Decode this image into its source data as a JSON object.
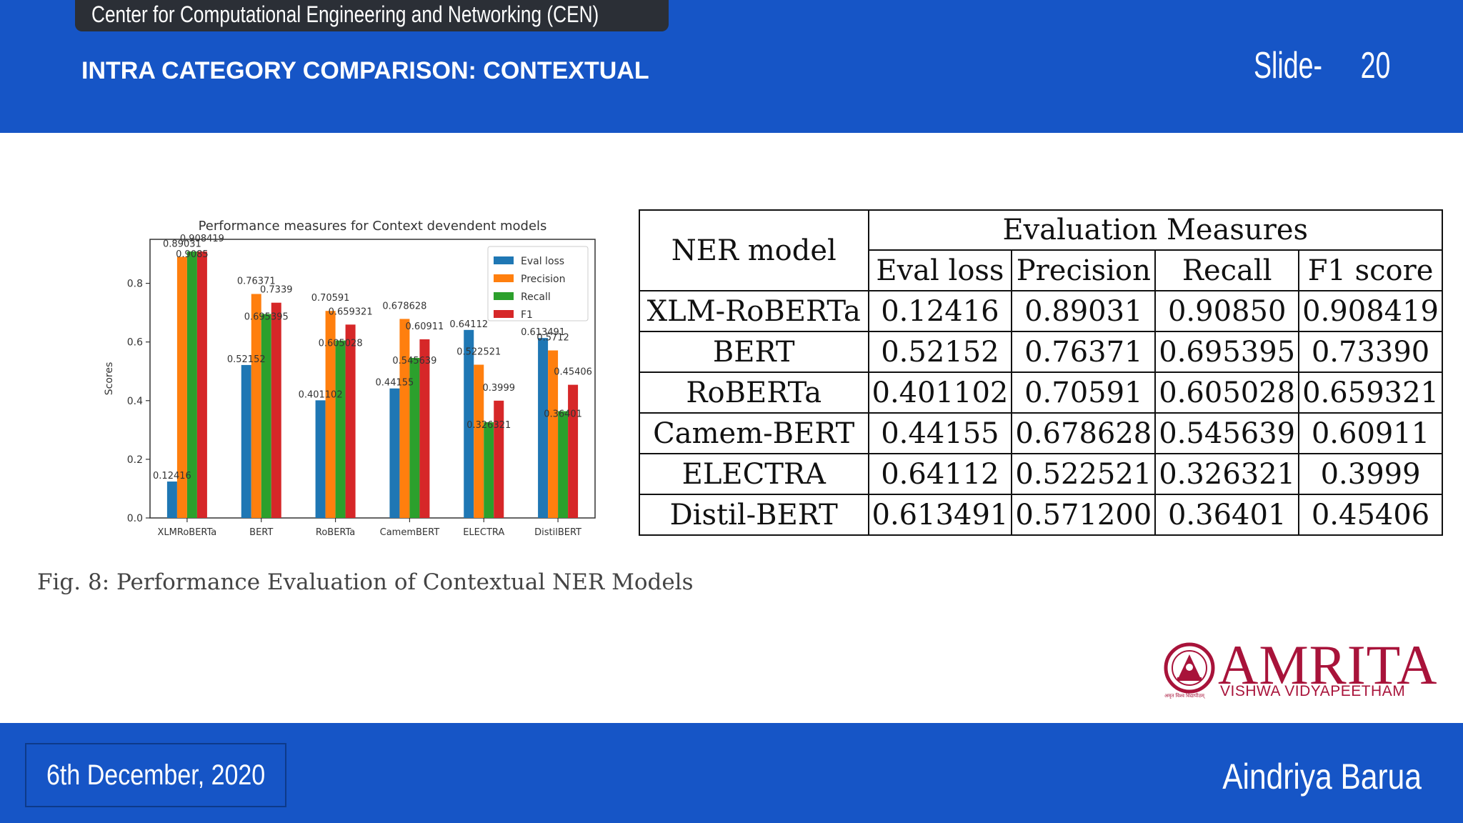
{
  "header": {
    "center_name": "Center for Computational Engineering and Networking (CEN)",
    "slide_title": "INTRA CATEGORY COMPARISON: CONTEXTUAL",
    "slide_label": "Slide-",
    "slide_number": "20"
  },
  "footer": {
    "date": "6th December, 2020",
    "author": "Aindriya Barua"
  },
  "figure": {
    "caption": "Fig. 8: Performance Evaluation of Contextual NER Models"
  },
  "chart_data": {
    "type": "bar",
    "title": "Performance measures for Context devendent models",
    "xlabel": "",
    "ylabel": "Scores",
    "ylim": [
      0,
      0.95
    ],
    "yticks": [
      "0.0",
      "0.2",
      "0.4",
      "0.6",
      "0.8"
    ],
    "categories": [
      "XLMRoBERTa",
      "BERT",
      "RoBERTa",
      "CamemBERT",
      "ELECTRA",
      "DistilBERT"
    ],
    "legend_position": "top-right",
    "grid": false,
    "series": [
      {
        "name": "Eval loss",
        "color": "#1f77b4",
        "values": [
          0.12416,
          0.52152,
          0.401102,
          0.44155,
          0.64112,
          0.613491
        ],
        "labels": [
          "0.12416",
          "0.52152",
          "0.401102",
          "0.44155",
          "0.64112",
          "0.613491"
        ]
      },
      {
        "name": "Precision",
        "color": "#ff7f0e",
        "values": [
          0.89031,
          0.76371,
          0.70591,
          0.678628,
          0.522521,
          0.5712
        ],
        "labels": [
          "0.89031",
          "0.76371",
          "0.70591",
          "0.678628",
          "0.522521",
          "0.5712"
        ]
      },
      {
        "name": "Recall",
        "color": "#2ca02c",
        "values": [
          0.9085,
          0.695395,
          0.605028,
          0.545639,
          0.326321,
          0.36401
        ],
        "labels": [
          "0.9085",
          "0.695395",
          "0.605028",
          "0.545639",
          "0.326321",
          "0.36401"
        ]
      },
      {
        "name": "F1",
        "color": "#d62728",
        "values": [
          0.908419,
          0.7339,
          0.659321,
          0.60911,
          0.3999,
          0.45406
        ],
        "labels": [
          "0.908419",
          "0.7339",
          "0.659321",
          "0.60911",
          "0.3999",
          "0.45406"
        ]
      }
    ]
  },
  "table": {
    "corner_header": "NER model",
    "group_header": "Evaluation Measures",
    "columns": [
      "Eval loss",
      "Precision",
      "Recall",
      "F1 score"
    ],
    "rows": [
      {
        "model": "XLM-RoBERTa",
        "values": [
          "0.12416",
          "0.89031",
          "0.90850",
          "0.908419"
        ]
      },
      {
        "model": "BERT",
        "values": [
          "0.52152",
          "0.76371",
          "0.695395",
          "0.73390"
        ]
      },
      {
        "model": "RoBERTa",
        "values": [
          "0.401102",
          "0.70591",
          "0.605028",
          "0.659321"
        ]
      },
      {
        "model": "Camem-BERT",
        "values": [
          "0.44155",
          "0.678628",
          "0.545639",
          "0.60911"
        ]
      },
      {
        "model": "ELECTRA",
        "values": [
          "0.64112",
          "0.522521",
          "0.326321",
          "0.3999"
        ]
      },
      {
        "model": "Distil-BERT",
        "values": [
          "0.613491",
          "0.571200",
          "0.36401",
          "0.45406"
        ]
      }
    ]
  },
  "logo": {
    "name": "AMRITA",
    "subtitle": "VISHWA VIDYAPEETHAM",
    "emblem_icon": "amrita-emblem-icon",
    "small_text": "अमृत विश्व विद्यापीठम्"
  },
  "colors": {
    "header_blue": "#1655c6",
    "tab_dark": "#2b2f36",
    "logo_maroon": "#a8133a"
  }
}
